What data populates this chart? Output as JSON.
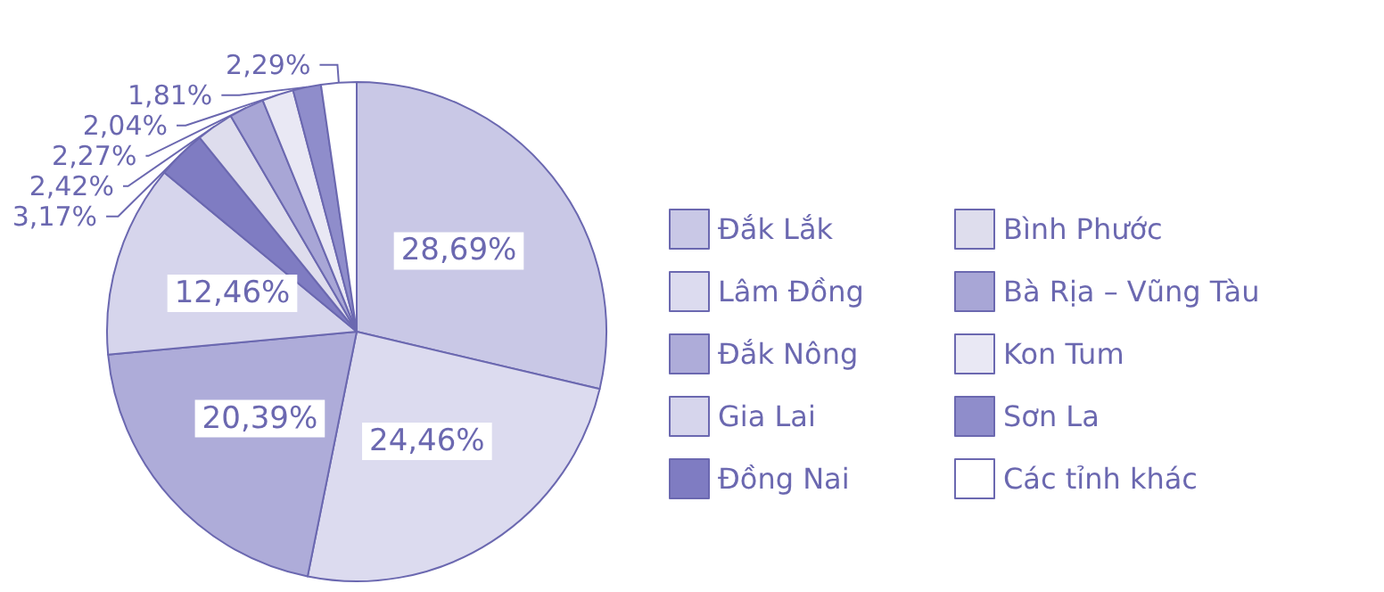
{
  "chart_data": {
    "type": "pie",
    "categories": [
      "Đắk Lắk",
      "Lâm Đồng",
      "Đắk Nông",
      "Gia Lai",
      "Đồng Nai",
      "Bình Phước",
      "Bà Rịa – Vũng Tàu",
      "Kon Tum",
      "Sơn La",
      "Các tỉnh khác"
    ],
    "values": [
      28.69,
      24.46,
      20.39,
      12.46,
      3.17,
      2.42,
      2.27,
      2.04,
      1.81,
      2.29
    ],
    "value_labels": [
      "28,69%",
      "24,46%",
      "20,39%",
      "12,46%",
      "3,17%",
      "2,42%",
      "2,27%",
      "2,04%",
      "1,81%",
      "2,29%"
    ],
    "colors": [
      "#c9c8e6",
      "#dcdbef",
      "#aeacd9",
      "#d6d5ec",
      "#7f7cc2",
      "#dedded",
      "#a8a6d6",
      "#e9e8f4",
      "#8f8dcb",
      "#ffffff"
    ],
    "legend": "right"
  }
}
